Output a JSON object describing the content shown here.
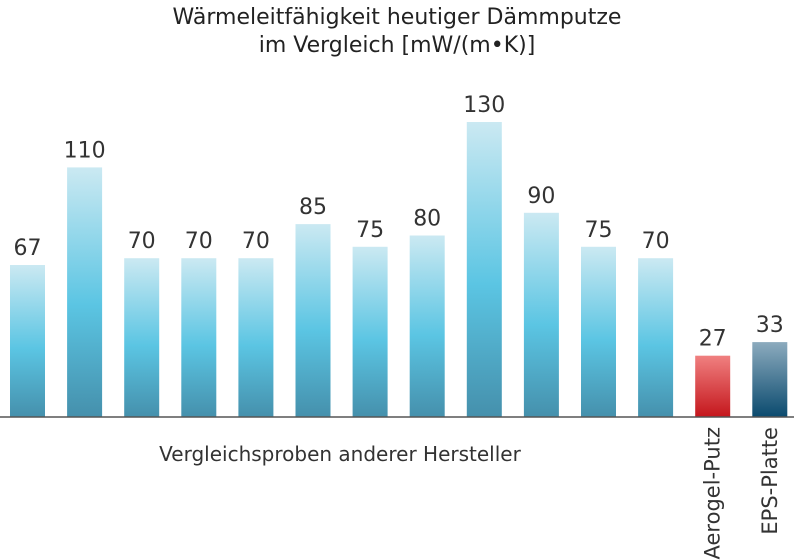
{
  "chart_data": {
    "type": "bar",
    "title": "Wärmeleitfähigkeit heutiger Dämmputze",
    "subtitle": "im Vergleich [mW/(m•K)]",
    "group_label": "Vergleichsproben anderer Hersteller",
    "values": [
      67,
      110,
      70,
      70,
      70,
      85,
      75,
      80,
      130,
      90,
      75,
      70,
      27,
      33
    ],
    "categories": [
      "",
      "",
      "",
      "",
      "",
      "",
      "",
      "",
      "",
      "",
      "",
      "",
      "Aerogel-Putz",
      "EPS-Platte"
    ],
    "ylim": [
      0,
      130
    ],
    "grid": false,
    "colors": {
      "comparison_top": "#cbe9f2",
      "comparison_mid": "#5bc5e3",
      "comparison_bottom": "#4590ac",
      "aerogel_top": "#f08080",
      "aerogel_bottom": "#c4161c",
      "eps_top": "#8cabbe",
      "eps_bottom": "#0a4a6e"
    }
  }
}
